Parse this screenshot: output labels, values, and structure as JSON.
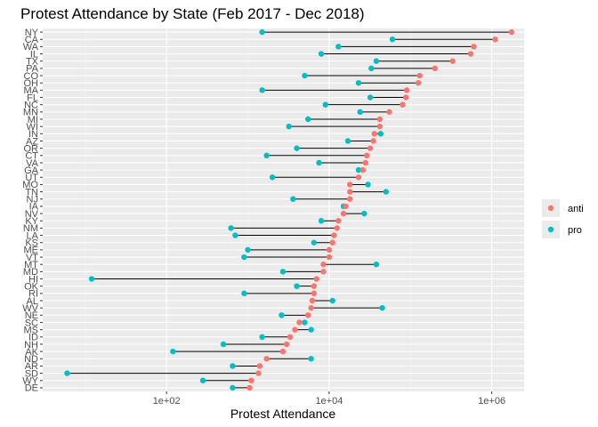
{
  "chart_data": {
    "type": "dumbbell",
    "title": "Protest Attendance by State (Feb 2017 - Dec 2018)",
    "xlabel": "Protest Attendance",
    "ylabel": "",
    "x_scale": "log10",
    "xlim": [
      3,
      2500000
    ],
    "x_ticks": [
      {
        "value": 100,
        "label": "1e+02"
      },
      {
        "value": 10000,
        "label": "1e+04"
      },
      {
        "value": 1000000,
        "label": "1e+06"
      }
    ],
    "grid": true,
    "legend_position": "right",
    "series": [
      {
        "name": "anti",
        "color": "#f8766d"
      },
      {
        "name": "pro",
        "color": "#00bfc4"
      }
    ],
    "states": [
      {
        "state": "NY",
        "anti": 1750000,
        "pro": 1500
      },
      {
        "state": "CA",
        "anti": 1100000,
        "pro": 60000
      },
      {
        "state": "WA",
        "anti": 600000,
        "pro": 13000
      },
      {
        "state": "IL",
        "anti": 550000,
        "pro": 8000
      },
      {
        "state": "TX",
        "anti": 330000,
        "pro": 38000
      },
      {
        "state": "PA",
        "anti": 200000,
        "pro": 33000
      },
      {
        "state": "CO",
        "anti": 130000,
        "pro": 5000
      },
      {
        "state": "OH",
        "anti": 125000,
        "pro": 23000
      },
      {
        "state": "MA",
        "anti": 90000,
        "pro": 1500
      },
      {
        "state": "FL",
        "anti": 88000,
        "pro": 32000
      },
      {
        "state": "NC",
        "anti": 80000,
        "pro": 9000
      },
      {
        "state": "MN",
        "anti": 55000,
        "pro": 24000
      },
      {
        "state": "MI",
        "anti": 42000,
        "pro": 5500
      },
      {
        "state": "WI",
        "anti": 42000,
        "pro": 3200
      },
      {
        "state": "IN",
        "anti": 36000,
        "pro": 43000
      },
      {
        "state": "AZ",
        "anti": 35000,
        "pro": 17000
      },
      {
        "state": "OR",
        "anti": 32000,
        "pro": 4000
      },
      {
        "state": "CT",
        "anti": 29000,
        "pro": 1700
      },
      {
        "state": "VA",
        "anti": 28000,
        "pro": 7500
      },
      {
        "state": "GA",
        "anti": 26000,
        "pro": 23000
      },
      {
        "state": "UT",
        "anti": 23000,
        "pro": 2000
      },
      {
        "state": "MO",
        "anti": 18000,
        "pro": 30000
      },
      {
        "state": "TN",
        "anti": 18000,
        "pro": 50000
      },
      {
        "state": "NJ",
        "anti": 18000,
        "pro": 3600
      },
      {
        "state": "IA",
        "anti": 16000,
        "pro": 15000
      },
      {
        "state": "NV",
        "anti": 15000,
        "pro": 27000
      },
      {
        "state": "KY",
        "anti": 13000,
        "pro": 8000
      },
      {
        "state": "NM",
        "anti": 12500,
        "pro": 620
      },
      {
        "state": "LA",
        "anti": 11500,
        "pro": 700
      },
      {
        "state": "KS",
        "anti": 11000,
        "pro": 6500
      },
      {
        "state": "ME",
        "anti": 10000,
        "pro": 1000
      },
      {
        "state": "VT",
        "anti": 10000,
        "pro": 900
      },
      {
        "state": "MT",
        "anti": 8500,
        "pro": 38000
      },
      {
        "state": "MD",
        "anti": 8500,
        "pro": 2700
      },
      {
        "state": "HI",
        "anti": 7000,
        "pro": 12
      },
      {
        "state": "OK",
        "anti": 6500,
        "pro": 4000
      },
      {
        "state": "RI",
        "anti": 6500,
        "pro": 900
      },
      {
        "state": "AL",
        "anti": 6200,
        "pro": 11000
      },
      {
        "state": "WV",
        "anti": 6000,
        "pro": 45000
      },
      {
        "state": "NE",
        "anti": 5500,
        "pro": 2600
      },
      {
        "state": "SC",
        "anti": 4300,
        "pro": 5000
      },
      {
        "state": "MS",
        "anti": 3800,
        "pro": 6000
      },
      {
        "state": "ID",
        "anti": 3300,
        "pro": 1500
      },
      {
        "state": "NH",
        "anti": 3000,
        "pro": 500
      },
      {
        "state": "AK",
        "anti": 2700,
        "pro": 120
      },
      {
        "state": "ND",
        "anti": 1700,
        "pro": 6000
      },
      {
        "state": "AR",
        "anti": 1400,
        "pro": 650
      },
      {
        "state": "SD",
        "anti": 1350,
        "pro": 6
      },
      {
        "state": "WY",
        "anti": 1100,
        "pro": 280
      },
      {
        "state": "DE",
        "anti": 1050,
        "pro": 650
      }
    ]
  }
}
